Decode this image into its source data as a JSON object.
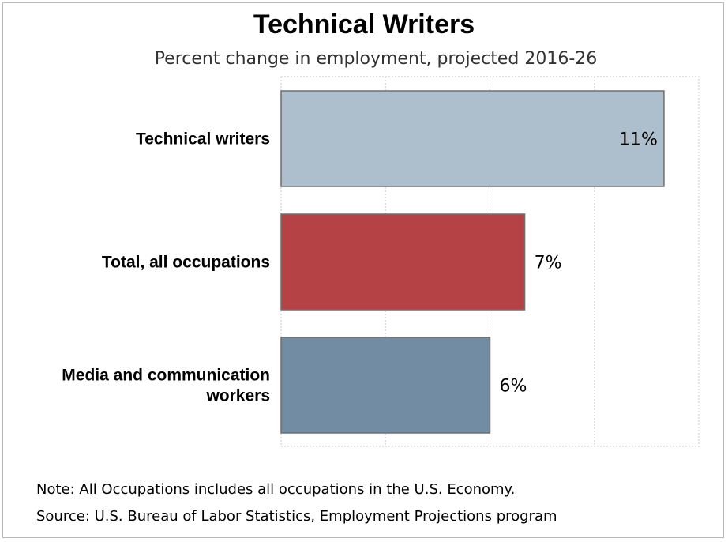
{
  "chart_data": {
    "type": "bar",
    "orientation": "horizontal",
    "title": "Technical Writers",
    "subtitle": "Percent change in employment, projected 2016-26",
    "categories": [
      "Technical writers",
      "Total, all occupations",
      "Media and communication workers"
    ],
    "category_lines": [
      [
        "Technical writers"
      ],
      [
        "Total, all occupations"
      ],
      [
        "Media and communication",
        "workers"
      ]
    ],
    "values": [
      11,
      7,
      6
    ],
    "value_labels": [
      "11%",
      "7%",
      "6%"
    ],
    "colors": [
      "#adbfcc",
      "#b54346",
      "#728ca3"
    ],
    "xlim": [
      0,
      12
    ],
    "grid_step": 3,
    "grid": true
  },
  "footer": {
    "note": "Note: All Occupations includes all occupations in the U.S. Economy.",
    "source": "Source: U.S. Bureau of Labor Statistics, Employment Projections program"
  }
}
